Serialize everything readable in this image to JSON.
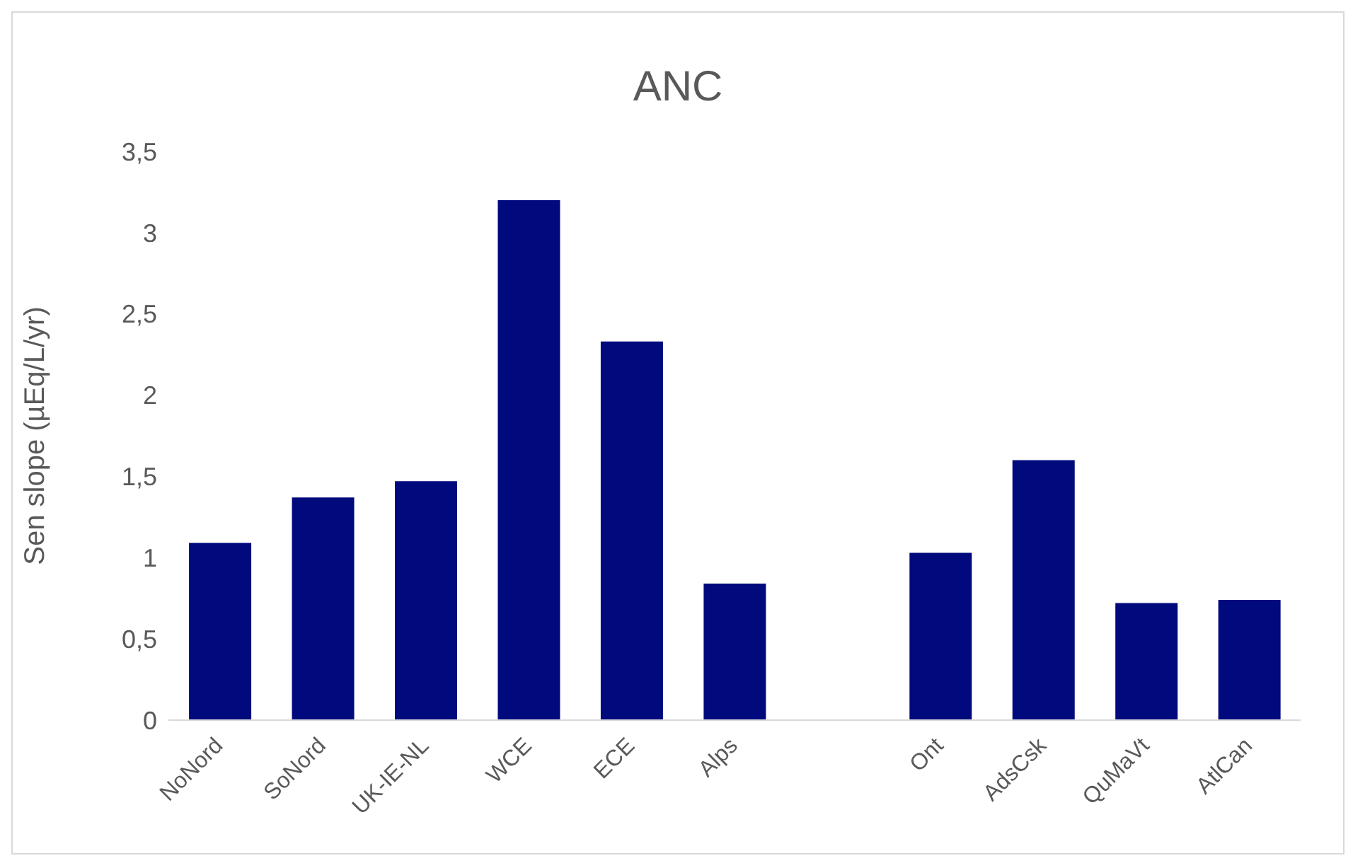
{
  "chart_data": {
    "type": "bar",
    "title": "ANC",
    "ylabel": "Sen slope (µEq/L/yr)",
    "categories": [
      "NoNord",
      "SoNord",
      "UK-IE-NL",
      "WCE",
      "ECE",
      "Alps",
      null,
      "Ont",
      "AdsCsk",
      "QuMaVt",
      "AtlCan"
    ],
    "values": [
      1.09,
      1.37,
      1.47,
      3.2,
      2.33,
      0.84,
      null,
      1.03,
      1.6,
      0.72,
      0.74
    ],
    "color": "#000a7c",
    "ylim": [
      0,
      3.5
    ],
    "yticks": [
      0,
      {
        "value": 0.5,
        "label": "0,5"
      },
      1,
      {
        "value": 1.5,
        "label": "1,5"
      },
      2,
      {
        "value": 2.5,
        "label": "2,5"
      },
      3,
      {
        "value": 3.5,
        "label": "3,5"
      }
    ],
    "grid": false,
    "legend": false
  }
}
